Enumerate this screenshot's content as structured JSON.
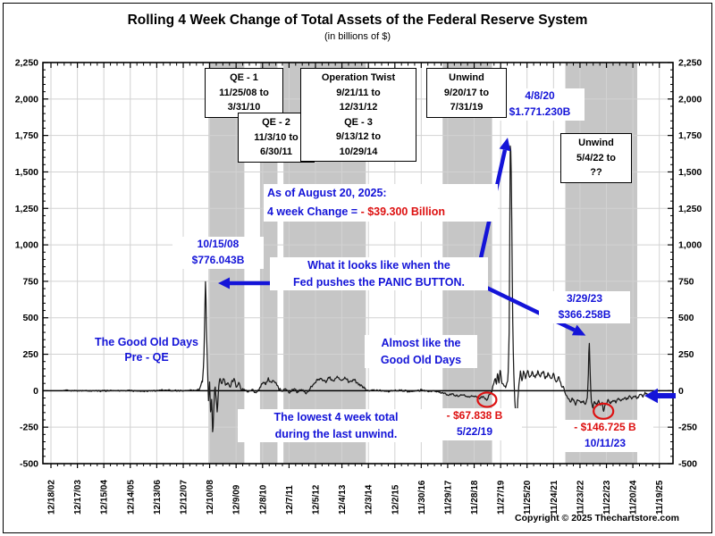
{
  "page": {
    "copyright": "Copyright © 2025 Thechartstore.com"
  },
  "colors": {
    "annotation_blue": "#1414d8",
    "alert_red": "#dd1111",
    "band_gray": "#c6c6c6",
    "grid_gray": "#d2d2d2",
    "line_black": "#1a1a1a",
    "axis_black": "#000000"
  },
  "chart_data": {
    "type": "line",
    "title": "Rolling 4 Week Change of Total Assets of the Federal Reserve System",
    "subtitle": "(in billions of $)",
    "grid": true,
    "x_axis": {
      "tick_labels": [
        "12/18/02",
        "12/17/03",
        "12/15/04",
        "12/14/05",
        "12/13/06",
        "12/12/07",
        "12/10/08",
        "12/9/09",
        "12/8/10",
        "12/7/11",
        "12/5/12",
        "12/4/13",
        "12/3/14",
        "12/2/15",
        "11/30/16",
        "11/29/17",
        "11/28/18",
        "11/27/19",
        "11/25/20",
        "11/24/21",
        "11/23/22",
        "11/22/23",
        "11/20/24",
        "11/19/25"
      ],
      "minor_divisions_per_major": 4
    },
    "y_axis": {
      "min": -500,
      "max": 2250,
      "major_step": 250,
      "minor_step": 50,
      "labels_both_sides": true
    },
    "shaded_periods": [
      {
        "name": "qe1",
        "from": "11/25/08",
        "to": "3/31/10"
      },
      {
        "name": "qe2",
        "from": "11/3/10",
        "to": "6/30/11"
      },
      {
        "name": "twist-qe3",
        "from": "9/21/11",
        "to": "10/29/14"
      },
      {
        "name": "unwind-2017",
        "from": "9/20/17",
        "to": "7/31/19"
      },
      {
        "name": "unwind-2022",
        "from": "5/4/22",
        "to": "",
        "to_decimal_year": 2025.05
      }
    ],
    "period_boxes": {
      "qe1": {
        "lines": [
          "QE - 1",
          "11/25/08 to",
          "3/31/10"
        ]
      },
      "qe2": {
        "lines": [
          "QE - 2",
          "11/3/10 to",
          "6/30/11"
        ]
      },
      "twist": {
        "lines": [
          "Operation Twist",
          "9/21/11 to",
          "12/31/12",
          "QE - 3",
          "9/13/12 to",
          "10/29/14"
        ]
      },
      "uw1": {
        "lines": [
          "Unwind",
          "9/20/17 to",
          "7/31/19"
        ]
      },
      "uw2": {
        "lines": [
          "Unwind",
          "5/4/22 to",
          "??"
        ]
      }
    },
    "annotations": {
      "covid_peak": {
        "date": "4/8/20",
        "value_label": "$1.771.230B",
        "value": 1771.23
      },
      "peak_2008": {
        "date": "10/15/08",
        "value_label": "$776.043B",
        "value": 776.043
      },
      "spike_2023": {
        "date": "3/29/23",
        "value_label": "$366.258B",
        "value": 366.258
      },
      "low_2019": {
        "date": "5/22/19",
        "value_label": "- $67.838 B",
        "value": -67.838
      },
      "low_2023": {
        "date": "10/11/23",
        "value_label": "- $146.725 B",
        "value": -146.725
      },
      "as_of": {
        "line1": "As of August 20, 2025:",
        "line2_blue": "4 week Change = ",
        "line2_red": " - $39.300 Billion",
        "end_date": "8/20/25",
        "end_value": -39.3
      },
      "panic": {
        "line1": "What it looks like when the",
        "line2": "Fed pushes the PANIC BUTTON."
      },
      "good_old": {
        "line1": "The Good Old Days",
        "line2": "Pre - QE"
      },
      "almost": {
        "line1": "Almost like the",
        "line2": "Good Old Days"
      },
      "lowest": {
        "line1": "The lowest 4 week total",
        "line2": "during the last unwind."
      }
    },
    "series": {
      "name": "Rolling 4-week change of Fed total assets",
      "start_decimal_year": 2003.4,
      "end_decimal_year": 2025.635,
      "samples_per_year": 52,
      "keypoints": [
        [
          2003.4,
          0
        ],
        [
          2004.0,
          2
        ],
        [
          2004.8,
          -2
        ],
        [
          2005.6,
          2
        ],
        [
          2006.4,
          -2
        ],
        [
          2007.2,
          3
        ],
        [
          2008.0,
          0
        ],
        [
          2008.55,
          8
        ],
        [
          2008.67,
          60
        ],
        [
          2008.72,
          180
        ],
        [
          2008.788,
          776.043
        ],
        [
          2008.83,
          380
        ],
        [
          2008.87,
          90
        ],
        [
          2008.9,
          -70
        ],
        [
          2008.94,
          70
        ],
        [
          2008.98,
          -170
        ],
        [
          2009.02,
          -50
        ],
        [
          2009.06,
          -312
        ],
        [
          2009.1,
          -110
        ],
        [
          2009.14,
          45
        ],
        [
          2009.19,
          -70
        ],
        [
          2009.23,
          -148
        ],
        [
          2009.28,
          35
        ],
        [
          2009.33,
          95
        ],
        [
          2009.4,
          45
        ],
        [
          2009.47,
          88
        ],
        [
          2009.54,
          25
        ],
        [
          2009.62,
          72
        ],
        [
          2009.7,
          18
        ],
        [
          2009.78,
          58
        ],
        [
          2009.86,
          78
        ],
        [
          2009.94,
          32
        ],
        [
          2010.03,
          58
        ],
        [
          2010.12,
          15
        ],
        [
          2010.25,
          5
        ],
        [
          2010.4,
          -12
        ],
        [
          2010.55,
          2
        ],
        [
          2010.7,
          -15
        ],
        [
          2010.85,
          28
        ],
        [
          2010.95,
          62
        ],
        [
          2011.05,
          42
        ],
        [
          2011.15,
          82
        ],
        [
          2011.25,
          52
        ],
        [
          2011.35,
          76
        ],
        [
          2011.45,
          48
        ],
        [
          2011.55,
          14
        ],
        [
          2011.65,
          -2
        ],
        [
          2011.8,
          12
        ],
        [
          2011.95,
          -18
        ],
        [
          2012.1,
          18
        ],
        [
          2012.25,
          -12
        ],
        [
          2012.4,
          14
        ],
        [
          2012.55,
          -22
        ],
        [
          2012.7,
          8
        ],
        [
          2012.85,
          42
        ],
        [
          2013.0,
          72
        ],
        [
          2013.15,
          88
        ],
        [
          2013.3,
          58
        ],
        [
          2013.45,
          92
        ],
        [
          2013.6,
          64
        ],
        [
          2013.75,
          96
        ],
        [
          2013.9,
          68
        ],
        [
          2014.05,
          86
        ],
        [
          2014.2,
          58
        ],
        [
          2014.35,
          80
        ],
        [
          2014.5,
          52
        ],
        [
          2014.65,
          34
        ],
        [
          2014.8,
          18
        ],
        [
          2014.95,
          2
        ],
        [
          2015.3,
          4
        ],
        [
          2015.7,
          -4
        ],
        [
          2016.1,
          4
        ],
        [
          2016.5,
          -6
        ],
        [
          2016.9,
          4
        ],
        [
          2017.3,
          -4
        ],
        [
          2017.6,
          -8
        ],
        [
          2017.75,
          -18
        ],
        [
          2017.9,
          -30
        ],
        [
          2018.1,
          -24
        ],
        [
          2018.3,
          -40
        ],
        [
          2018.5,
          -28
        ],
        [
          2018.7,
          -44
        ],
        [
          2018.9,
          -34
        ],
        [
          2019.1,
          -50
        ],
        [
          2019.25,
          -38
        ],
        [
          2019.388,
          -67.838
        ],
        [
          2019.46,
          -32
        ],
        [
          2019.56,
          -8
        ],
        [
          2019.63,
          42
        ],
        [
          2019.7,
          95
        ],
        [
          2019.74,
          30
        ],
        [
          2019.79,
          135
        ],
        [
          2019.84,
          55
        ],
        [
          2019.89,
          155
        ],
        [
          2019.94,
          65
        ],
        [
          2020.02,
          38
        ],
        [
          2020.1,
          22
        ],
        [
          2020.18,
          70
        ],
        [
          2020.23,
          420
        ],
        [
          2020.268,
          1771.23
        ],
        [
          2020.31,
          1450
        ],
        [
          2020.35,
          600
        ],
        [
          2020.39,
          160
        ],
        [
          2020.43,
          -40
        ],
        [
          2020.47,
          -150
        ],
        [
          2020.505,
          -252
        ],
        [
          2020.55,
          -70
        ],
        [
          2020.6,
          65
        ],
        [
          2020.65,
          132
        ],
        [
          2020.71,
          72
        ],
        [
          2020.77,
          142
        ],
        [
          2020.84,
          92
        ],
        [
          2020.92,
          148
        ],
        [
          2021.0,
          82
        ],
        [
          2021.1,
          132
        ],
        [
          2021.2,
          88
        ],
        [
          2021.3,
          138
        ],
        [
          2021.4,
          92
        ],
        [
          2021.5,
          130
        ],
        [
          2021.6,
          84
        ],
        [
          2021.7,
          122
        ],
        [
          2021.8,
          78
        ],
        [
          2021.9,
          112
        ],
        [
          2022.0,
          68
        ],
        [
          2022.1,
          88
        ],
        [
          2022.2,
          40
        ],
        [
          2022.3,
          8
        ],
        [
          2022.42,
          -48
        ],
        [
          2022.52,
          -74
        ],
        [
          2022.62,
          -52
        ],
        [
          2022.72,
          -92
        ],
        [
          2022.82,
          -62
        ],
        [
          2022.92,
          -86
        ],
        [
          2023.02,
          -70
        ],
        [
          2023.1,
          -92
        ],
        [
          2023.17,
          -48
        ],
        [
          2023.21,
          120
        ],
        [
          2023.24,
          366.258
        ],
        [
          2023.28,
          90
        ],
        [
          2023.32,
          -70
        ],
        [
          2023.37,
          -118
        ],
        [
          2023.44,
          -76
        ],
        [
          2023.52,
          -98
        ],
        [
          2023.6,
          -70
        ],
        [
          2023.67,
          -102
        ],
        [
          2023.73,
          -82
        ],
        [
          2023.777,
          -146.725
        ],
        [
          2023.85,
          -92
        ],
        [
          2023.95,
          -68
        ],
        [
          2024.05,
          -86
        ],
        [
          2024.15,
          -58
        ],
        [
          2024.25,
          -78
        ],
        [
          2024.35,
          -52
        ],
        [
          2024.45,
          -70
        ],
        [
          2024.55,
          -44
        ],
        [
          2024.65,
          -62
        ],
        [
          2024.75,
          -40
        ],
        [
          2024.85,
          -56
        ],
        [
          2024.95,
          -34
        ],
        [
          2025.05,
          -46
        ],
        [
          2025.15,
          -26
        ],
        [
          2025.25,
          -38
        ],
        [
          2025.35,
          -20
        ],
        [
          2025.45,
          -32
        ],
        [
          2025.55,
          -26
        ],
        [
          2025.635,
          -39.3
        ]
      ],
      "noise_segments": [
        [
          2003.4,
          2008.6,
          6
        ],
        [
          2008.6,
          2010.3,
          16
        ],
        [
          2010.3,
          2011.7,
          10
        ],
        [
          2011.7,
          2014.9,
          12
        ],
        [
          2014.9,
          2017.6,
          7
        ],
        [
          2017.6,
          2019.56,
          8
        ],
        [
          2019.56,
          2020.18,
          14
        ],
        [
          2020.18,
          2020.56,
          8
        ],
        [
          2020.56,
          2022.3,
          16
        ],
        [
          2022.3,
          2025.635,
          12
        ]
      ],
      "pinned_times": [
        2008.788,
        2019.388,
        2020.268,
        2023.24,
        2023.777,
        2025.635
      ]
    }
  }
}
